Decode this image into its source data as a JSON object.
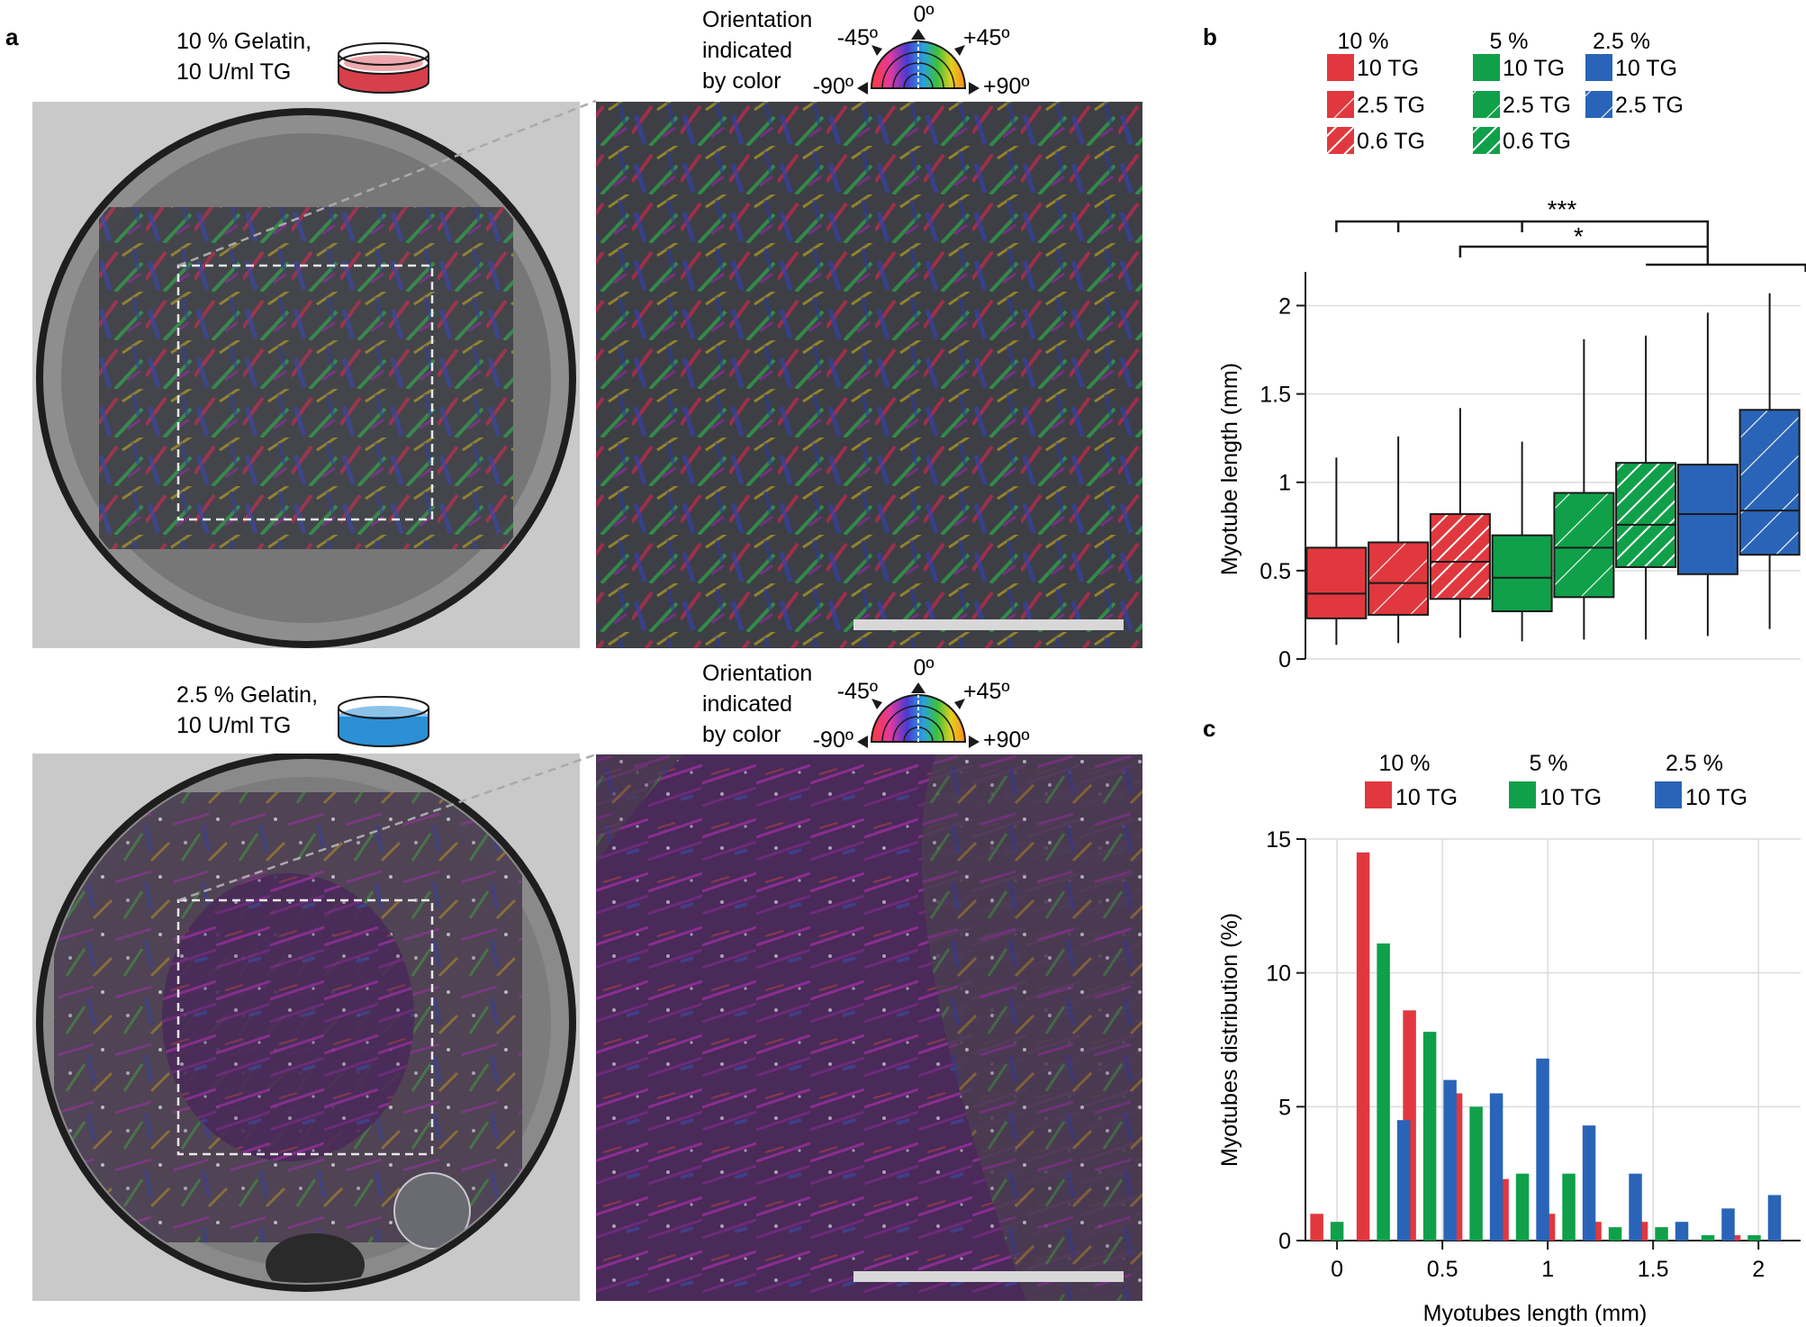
{
  "colors": {
    "red": "#e0383e",
    "green": "#10a04a",
    "blue": "#2a64b8",
    "grid": "#dcdcdc",
    "axis": "#1a1a1a",
    "scalebar": "#d8d8d8"
  },
  "panel_a": {
    "label": "a",
    "top": {
      "gel_line1": "10 % Gelatin,",
      "gel_line2": "10 U/ml TG",
      "dish_color": "#d6404b"
    },
    "bottom": {
      "gel_line1": "2.5 % Gelatin,",
      "gel_line2": "10 U/ml TG",
      "dish_color": "#2d8fd6"
    },
    "orientation": {
      "line1": "Orientation",
      "line2": "indicated",
      "line3": "by color",
      "deg_top": "0º",
      "deg_left_mid": "-45º",
      "deg_right_mid": "+45º",
      "deg_left": "-90º",
      "deg_right": "+90º"
    }
  },
  "panel_b": {
    "label": "b",
    "legend": {
      "headers": [
        "10 %",
        "5 %",
        "2.5 %"
      ],
      "columns": [
        {
          "color": "red",
          "items": [
            {
              "label": "10 TG",
              "pattern": "solid"
            },
            {
              "label": "2.5 TG",
              "pattern": "sparse"
            },
            {
              "label": "0.6 TG",
              "pattern": "dense"
            }
          ]
        },
        {
          "color": "green",
          "items": [
            {
              "label": "10 TG",
              "pattern": "solid"
            },
            {
              "label": "2.5 TG",
              "pattern": "sparse"
            },
            {
              "label": "0.6 TG",
              "pattern": "dense"
            }
          ]
        },
        {
          "color": "blue",
          "items": [
            {
              "label": "10 TG",
              "pattern": "solid"
            },
            {
              "label": "2.5 TG",
              "pattern": "sparse"
            }
          ]
        }
      ]
    },
    "significance": [
      "***",
      "*"
    ]
  },
  "panel_c": {
    "label": "c",
    "legend": [
      {
        "header": "10 %",
        "label": "10 TG",
        "color": "red"
      },
      {
        "header": "5 %",
        "label": "10 TG",
        "color": "green"
      },
      {
        "header": "2.5 %",
        "label": "10 TG",
        "color": "blue"
      }
    ]
  },
  "chart_data": [
    {
      "type": "box",
      "title": "",
      "xlabel": "",
      "ylabel": "Myotube length (mm)",
      "ylim": [
        0,
        2.15
      ],
      "yticks": [
        0,
        0.5,
        1,
        1.5,
        2
      ],
      "ytick_labels": [
        "0",
        "0.5",
        "1",
        "1.5",
        "2"
      ],
      "grid": true,
      "boxes": [
        {
          "name": "10 % Gelatin, 10 TG",
          "color": "red",
          "pattern": "solid",
          "whisker_low": 0.08,
          "q1": 0.23,
          "median": 0.37,
          "q3": 0.63,
          "whisker_high": 1.14
        },
        {
          "name": "10 % Gelatin, 2.5 TG",
          "color": "red",
          "pattern": "sparse",
          "whisker_low": 0.09,
          "q1": 0.25,
          "median": 0.43,
          "q3": 0.66,
          "whisker_high": 1.26
        },
        {
          "name": "10 % Gelatin, 0.6 TG",
          "color": "red",
          "pattern": "dense",
          "whisker_low": 0.12,
          "q1": 0.34,
          "median": 0.55,
          "q3": 0.82,
          "whisker_high": 1.42
        },
        {
          "name": "5 % Gelatin, 10 TG",
          "color": "green",
          "pattern": "solid",
          "whisker_low": 0.1,
          "q1": 0.27,
          "median": 0.46,
          "q3": 0.7,
          "whisker_high": 1.23
        },
        {
          "name": "5 % Gelatin, 2.5 TG",
          "color": "green",
          "pattern": "sparse",
          "whisker_low": 0.11,
          "q1": 0.35,
          "median": 0.63,
          "q3": 0.94,
          "whisker_high": 1.81
        },
        {
          "name": "5 % Gelatin, 0.6 TG",
          "color": "green",
          "pattern": "dense",
          "whisker_low": 0.11,
          "q1": 0.52,
          "median": 0.76,
          "q3": 1.11,
          "whisker_high": 1.83
        },
        {
          "name": "2.5 % Gelatin, 10 TG",
          "color": "blue",
          "pattern": "solid",
          "whisker_low": 0.13,
          "q1": 0.48,
          "median": 0.82,
          "q3": 1.1,
          "whisker_high": 1.96
        },
        {
          "name": "2.5 % Gelatin, 2.5 TG",
          "color": "blue",
          "pattern": "sparse",
          "whisker_low": 0.17,
          "q1": 0.59,
          "median": 0.84,
          "q3": 1.41,
          "whisker_high": 2.07
        }
      ]
    },
    {
      "type": "bar",
      "title": "",
      "xlabel": "Myotubes length (mm)",
      "ylabel": "Myotubes distribution (%)",
      "xlim": [
        -0.15,
        2.2
      ],
      "ylim": [
        0,
        15
      ],
      "xticks": [
        0,
        0.5,
        1,
        1.5,
        2
      ],
      "xtick_labels": [
        "0",
        "0.5",
        "1",
        "1.5",
        "2"
      ],
      "yticks": [
        0,
        5,
        10,
        15
      ],
      "ytick_labels": [
        "0",
        "5",
        "10",
        "15"
      ],
      "grid": true,
      "x": [
        0,
        0.22,
        0.44,
        0.66,
        0.88,
        1.1,
        1.32,
        1.54,
        1.76,
        1.98
      ],
      "series": [
        {
          "name": "10 % 10 TG",
          "color": "red",
          "values": [
            1.0,
            14.5,
            8.6,
            5.5,
            2.3,
            1.0,
            0.7,
            0.7,
            0.0,
            0.2
          ]
        },
        {
          "name": "5 % 10 TG",
          "color": "green",
          "values": [
            0.7,
            11.1,
            7.8,
            5.0,
            2.5,
            2.5,
            0.5,
            0.5,
            0.2,
            0.2
          ]
        },
        {
          "name": "2.5 % 10 TG",
          "color": "blue",
          "values": [
            0.0,
            4.5,
            6.0,
            5.5,
            6.8,
            4.3,
            2.5,
            0.7,
            1.2,
            1.7
          ]
        }
      ]
    }
  ]
}
